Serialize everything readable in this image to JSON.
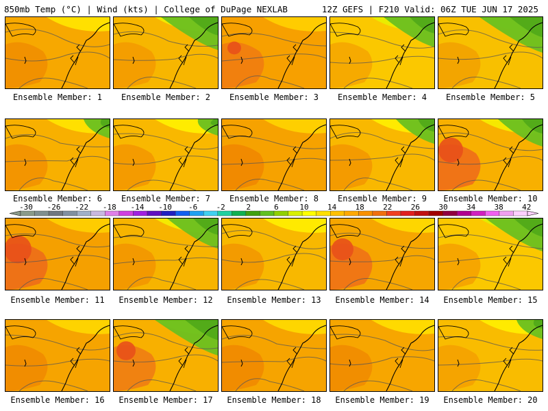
{
  "header": {
    "left": "850mb Temp (°C) | Wind (kts) | College of DuPage NEXLAB",
    "right": "12Z GEFS | F210 Valid: 06Z TUE JUN 17 2025"
  },
  "panel_label_prefix": "Ensemble Member: ",
  "members": [
    {
      "label": "Ensemble Member: 1",
      "base": "#f7a800",
      "warm": "#f08d00",
      "cool": "#ffe500",
      "green": 0.0,
      "red": 0.0
    },
    {
      "label": "Ensemble Member: 2",
      "base": "#f7b600",
      "warm": "#f39a00",
      "cool": "#eff000",
      "green": 0.7,
      "red": 0.0
    },
    {
      "label": "Ensemble Member: 3",
      "base": "#f7a000",
      "warm": "#f07a10",
      "cool": "#ffd000",
      "green": 0.0,
      "red": 0.2
    },
    {
      "label": "Ensemble Member: 4",
      "base": "#fbc800",
      "warm": "#f4a400",
      "cool": "#e8f000",
      "green": 0.6,
      "red": 0.0
    },
    {
      "label": "Ensemble Member: 5",
      "base": "#f8c000",
      "warm": "#f2a000",
      "cool": "#d6ee00",
      "green": 0.8,
      "red": 0.0
    },
    {
      "label": "Ensemble Member: 6",
      "base": "#f8b000",
      "warm": "#f29000",
      "cool": "#ffe600",
      "green": 0.2,
      "red": 0.0
    },
    {
      "label": "Ensemble Member: 7",
      "base": "#f9b800",
      "warm": "#f39500",
      "cool": "#fff200",
      "green": 0.1,
      "red": 0.0
    },
    {
      "label": "Ensemble Member: 8",
      "base": "#f6a200",
      "warm": "#f08600",
      "cool": "#ffd400",
      "green": 0.0,
      "red": 0.0
    },
    {
      "label": "Ensemble Member: 9",
      "base": "#f9b800",
      "warm": "#f39500",
      "cool": "#fff000",
      "green": 0.4,
      "red": 0.0
    },
    {
      "label": "Ensemble Member: 10",
      "base": "#f8b000",
      "warm": "#ef6a1a",
      "cool": "#f5ee00",
      "green": 0.5,
      "red": 0.6
    },
    {
      "label": "Ensemble Member: 11",
      "base": "#f5a000",
      "warm": "#ec6a1a",
      "cool": "#ffd000",
      "green": 0.0,
      "red": 0.7
    },
    {
      "label": "Ensemble Member: 12",
      "base": "#f7b400",
      "warm": "#f29400",
      "cool": "#f4ee00",
      "green": 0.6,
      "red": 0.0
    },
    {
      "label": "Ensemble Member: 13",
      "base": "#f8b800",
      "warm": "#f29500",
      "cool": "#fff000",
      "green": 0.0,
      "red": 0.0
    },
    {
      "label": "Ensemble Member: 14",
      "base": "#f6a600",
      "warm": "#ee6e18",
      "cool": "#ffdc00",
      "green": 0.0,
      "red": 0.5
    },
    {
      "label": "Ensemble Member: 15",
      "base": "#fbc800",
      "warm": "#f4a000",
      "cool": "#e0f000",
      "green": 0.7,
      "red": 0.0
    },
    {
      "label": "Ensemble Member: 16",
      "base": "#f6a400",
      "warm": "#f08a00",
      "cool": "#ffd800",
      "green": 0.0,
      "red": 0.0
    },
    {
      "label": "Ensemble Member: 17",
      "base": "#f8b000",
      "warm": "#ef7a14",
      "cool": "#eef000",
      "green": 0.8,
      "red": 0.4
    },
    {
      "label": "Ensemble Member: 18",
      "base": "#f6a400",
      "warm": "#f08800",
      "cool": "#ffdc00",
      "green": 0.0,
      "red": 0.0
    },
    {
      "label": "Ensemble Member: 19",
      "base": "#f7a600",
      "warm": "#f08a00",
      "cool": "#ffe000",
      "green": 0.0,
      "red": 0.0
    },
    {
      "label": "Ensemble Member: 20",
      "base": "#f9bc00",
      "warm": "#f4a000",
      "cool": "#fff000",
      "green": 0.2,
      "red": 0.0
    }
  ],
  "colorbar": {
    "labels": [
      "-30",
      "-26",
      "-22",
      "-18",
      "-14",
      "-10",
      "-6",
      "-2",
      "2",
      "6",
      "10",
      "14",
      "18",
      "22",
      "26",
      "30",
      "34",
      "38",
      "42"
    ],
    "colors": [
      "#8a9a8a",
      "#7f8f8f",
      "#707880",
      "#8090a0",
      "#a0b0c8",
      "#c8b8e0",
      "#e080e8",
      "#d040e0",
      "#a020e0",
      "#6010c0",
      "#2020c0",
      "#1060f0",
      "#20a0f0",
      "#40d0f0",
      "#20d0a0",
      "#10b050",
      "#40a010",
      "#60c020",
      "#90d000",
      "#d8f000",
      "#ffff00",
      "#ffe000",
      "#ffc000",
      "#ffa800",
      "#f89000",
      "#f07010",
      "#f04020",
      "#e02020",
      "#c01010",
      "#a00000",
      "#900040",
      "#b00090",
      "#d020c0",
      "#f060f0",
      "#f0a0f0",
      "#ffd0ff"
    ]
  }
}
